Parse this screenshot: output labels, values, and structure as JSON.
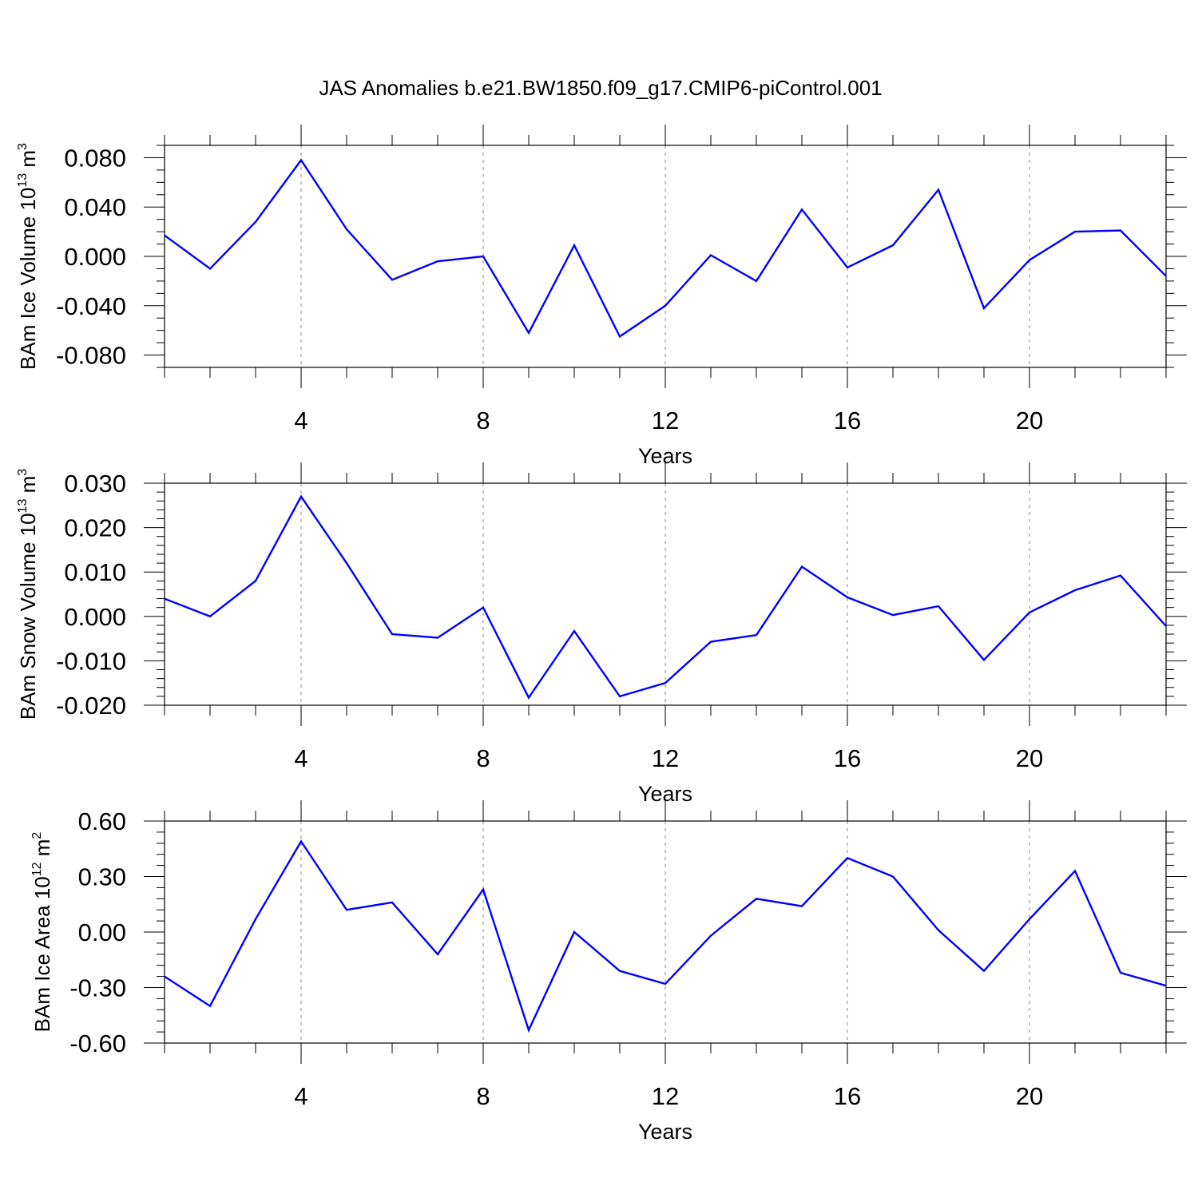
{
  "title": "JAS Anomalies b.e21.BW1850.f09_g17.CMIP6-piControl.001",
  "colors": {
    "line": "#0000ff",
    "axis": "#000000",
    "grid": "#888888"
  },
  "chart_data": [
    {
      "type": "line",
      "ylabel_text": "BAm Ice Volume 10",
      "ylabel_exp": "13",
      "ylabel_unit": "m",
      "ylabel_unit_exp": "3",
      "xlabel": "Years",
      "xlim": [
        1,
        23
      ],
      "ylim": [
        -0.09,
        0.09
      ],
      "yticks": [
        -0.08,
        -0.04,
        0.0,
        0.04,
        0.08
      ],
      "ytick_labels": [
        "-0.080",
        "-0.040",
        "0.000",
        "0.040",
        "0.080"
      ],
      "yminor_step": 0.01,
      "xticks": [
        4,
        8,
        12,
        16,
        20
      ],
      "xtick_labels": [
        "4",
        "8",
        "12",
        "16",
        "20"
      ],
      "x": [
        1,
        2,
        3,
        4,
        5,
        6,
        7,
        8,
        9,
        10,
        11,
        12,
        13,
        14,
        15,
        16,
        17,
        18,
        19,
        20,
        21,
        22,
        23
      ],
      "series": [
        {
          "name": "BAm Ice Volume",
          "values": [
            0.017,
            -0.01,
            0.028,
            0.078,
            0.022,
            -0.019,
            -0.004,
            0.0,
            -0.062,
            0.009,
            -0.065,
            -0.04,
            0.001,
            -0.02,
            0.038,
            -0.009,
            0.009,
            0.054,
            -0.042,
            -0.003,
            0.02,
            0.021,
            -0.016
          ]
        }
      ]
    },
    {
      "type": "line",
      "ylabel_text": "BAm Snow Volume 10",
      "ylabel_exp": "13",
      "ylabel_unit": "m",
      "ylabel_unit_exp": "3",
      "xlabel": "Years",
      "xlim": [
        1,
        23
      ],
      "ylim": [
        -0.02,
        0.03
      ],
      "yticks": [
        -0.02,
        -0.01,
        0.0,
        0.01,
        0.02,
        0.03
      ],
      "ytick_labels": [
        "-0.020",
        "-0.010",
        "0.000",
        "0.010",
        "0.020",
        "0.030"
      ],
      "yminor_step": 0.002,
      "xticks": [
        4,
        8,
        12,
        16,
        20
      ],
      "xtick_labels": [
        "4",
        "8",
        "12",
        "16",
        "20"
      ],
      "x": [
        1,
        2,
        3,
        4,
        5,
        6,
        7,
        8,
        9,
        10,
        11,
        12,
        13,
        14,
        15,
        16,
        17,
        18,
        19,
        20,
        21,
        22,
        23
      ],
      "series": [
        {
          "name": "BAm Snow Volume",
          "values": [
            0.004,
            0.0,
            0.008,
            0.027,
            0.012,
            -0.004,
            -0.0048,
            0.002,
            -0.0183,
            -0.0033,
            -0.018,
            -0.015,
            -0.0057,
            -0.0042,
            0.0112,
            0.0043,
            0.0003,
            0.0023,
            -0.0098,
            0.0009,
            0.0059,
            0.0092,
            -0.0022
          ]
        }
      ]
    },
    {
      "type": "line",
      "ylabel_text": "BAm Ice Area 10",
      "ylabel_exp": "12",
      "ylabel_unit": "m",
      "ylabel_unit_exp": "2",
      "xlabel": "Years",
      "xlim": [
        1,
        23
      ],
      "ylim": [
        -0.6,
        0.6
      ],
      "yticks": [
        -0.6,
        -0.3,
        0.0,
        0.3,
        0.6
      ],
      "ytick_labels": [
        "-0.60",
        "-0.30",
        "0.00",
        "0.30",
        "0.60"
      ],
      "yminor_step": 0.06,
      "xticks": [
        4,
        8,
        12,
        16,
        20
      ],
      "xtick_labels": [
        "4",
        "8",
        "12",
        "16",
        "20"
      ],
      "x": [
        1,
        2,
        3,
        4,
        5,
        6,
        7,
        8,
        9,
        10,
        11,
        12,
        13,
        14,
        15,
        16,
        17,
        18,
        19,
        20,
        21,
        22,
        23
      ],
      "series": [
        {
          "name": "BAm Ice Area",
          "values": [
            -0.24,
            -0.4,
            0.07,
            0.49,
            0.12,
            0.16,
            -0.12,
            0.23,
            -0.53,
            0.0,
            -0.21,
            -0.28,
            -0.02,
            0.18,
            0.14,
            0.4,
            0.3,
            0.01,
            -0.21,
            0.07,
            0.33,
            -0.22,
            -0.29
          ]
        }
      ]
    }
  ]
}
